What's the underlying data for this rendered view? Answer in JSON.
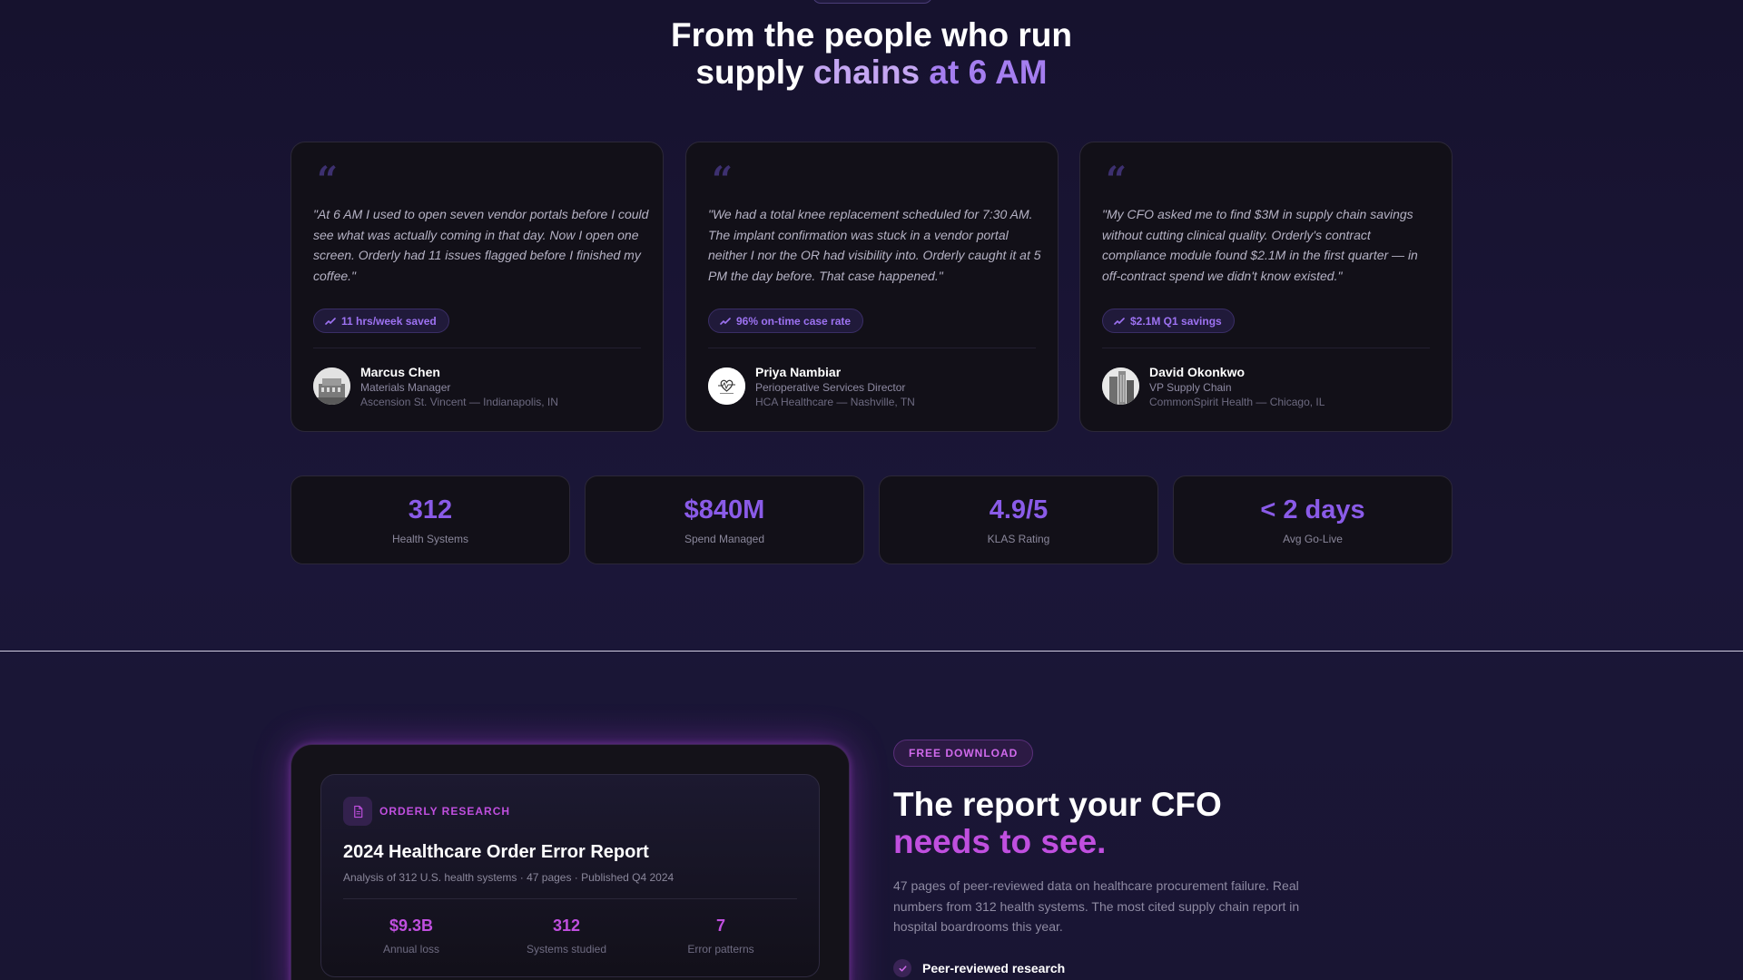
{
  "hero": {
    "title_line1": "From the people who run",
    "title_line2_a": "supply ",
    "title_line2_b": "chains",
    "title_line2_c": " at 6 AM"
  },
  "testimonials": [
    {
      "quote": "\"At 6 AM I used to open seven vendor portals before I could see what was actually coming in that day. Now I open one screen. Orderly had 11 issues flagged before I finished my coffee.\"",
      "badge": "11 hrs/week saved",
      "name": "Marcus Chen",
      "role": "Materials Manager",
      "org": "Ascension St. Vincent — Indianapolis, IN",
      "avatar_icon": "building-photo-icon"
    },
    {
      "quote": "\"We had a total knee replacement scheduled for 7:30 AM. The implant confirmation was stuck in a vendor portal neither I nor the OR had visibility into. Orderly caught it at 5 PM the day before. That case happened.\"",
      "badge": "96% on-time case rate",
      "name": "Priya Nambiar",
      "role": "Perioperative Services Director",
      "org": "HCA Healthcare — Nashville, TN",
      "avatar_icon": "heart-logo-icon"
    },
    {
      "quote": "\"My CFO asked me to find $3M in supply chain savings without cutting clinical quality. Orderly's contract compliance module found $2.1M in the first quarter — in off-contract spend we didn't know existed.\"",
      "badge": "$2.1M Q1 savings",
      "name": "David Okonkwo",
      "role": "VP Supply Chain",
      "org": "CommonSpirit Health — Chicago, IL",
      "avatar_icon": "skyscraper-photo-icon"
    }
  ],
  "stats": [
    {
      "value": "312",
      "label": "Health Systems"
    },
    {
      "value": "$840M",
      "label": "Spend Managed"
    },
    {
      "value": "4.9/5",
      "label": "KLAS Rating"
    },
    {
      "value": "< 2 days",
      "label": "Avg Go-Live"
    }
  ],
  "report": {
    "tag": "ORDERLY RESEARCH",
    "title": "2024 Healthcare Order Error Report",
    "meta": "Analysis of 312 U.S. health systems · 47 pages · Published Q4 2024",
    "stats": [
      {
        "value": "$9.3B",
        "label": "Annual loss"
      },
      {
        "value": "312",
        "label": "Systems studied"
      },
      {
        "value": "7",
        "label": "Error patterns"
      }
    ]
  },
  "cta": {
    "pill": "FREE DOWNLOAD",
    "title_line1": "The report your CFO",
    "title_line2": "needs to see.",
    "description": "47 pages of peer-reviewed data on healthcare procurement failure. Real numbers from 312 health systems. The most cited supply chain report in hospital boardrooms this year.",
    "check_item": "Peer-reviewed research"
  },
  "colors": {
    "accent_purple": "#8a5be8",
    "accent_magenta": "#c04fdf",
    "background": "#15122b"
  }
}
